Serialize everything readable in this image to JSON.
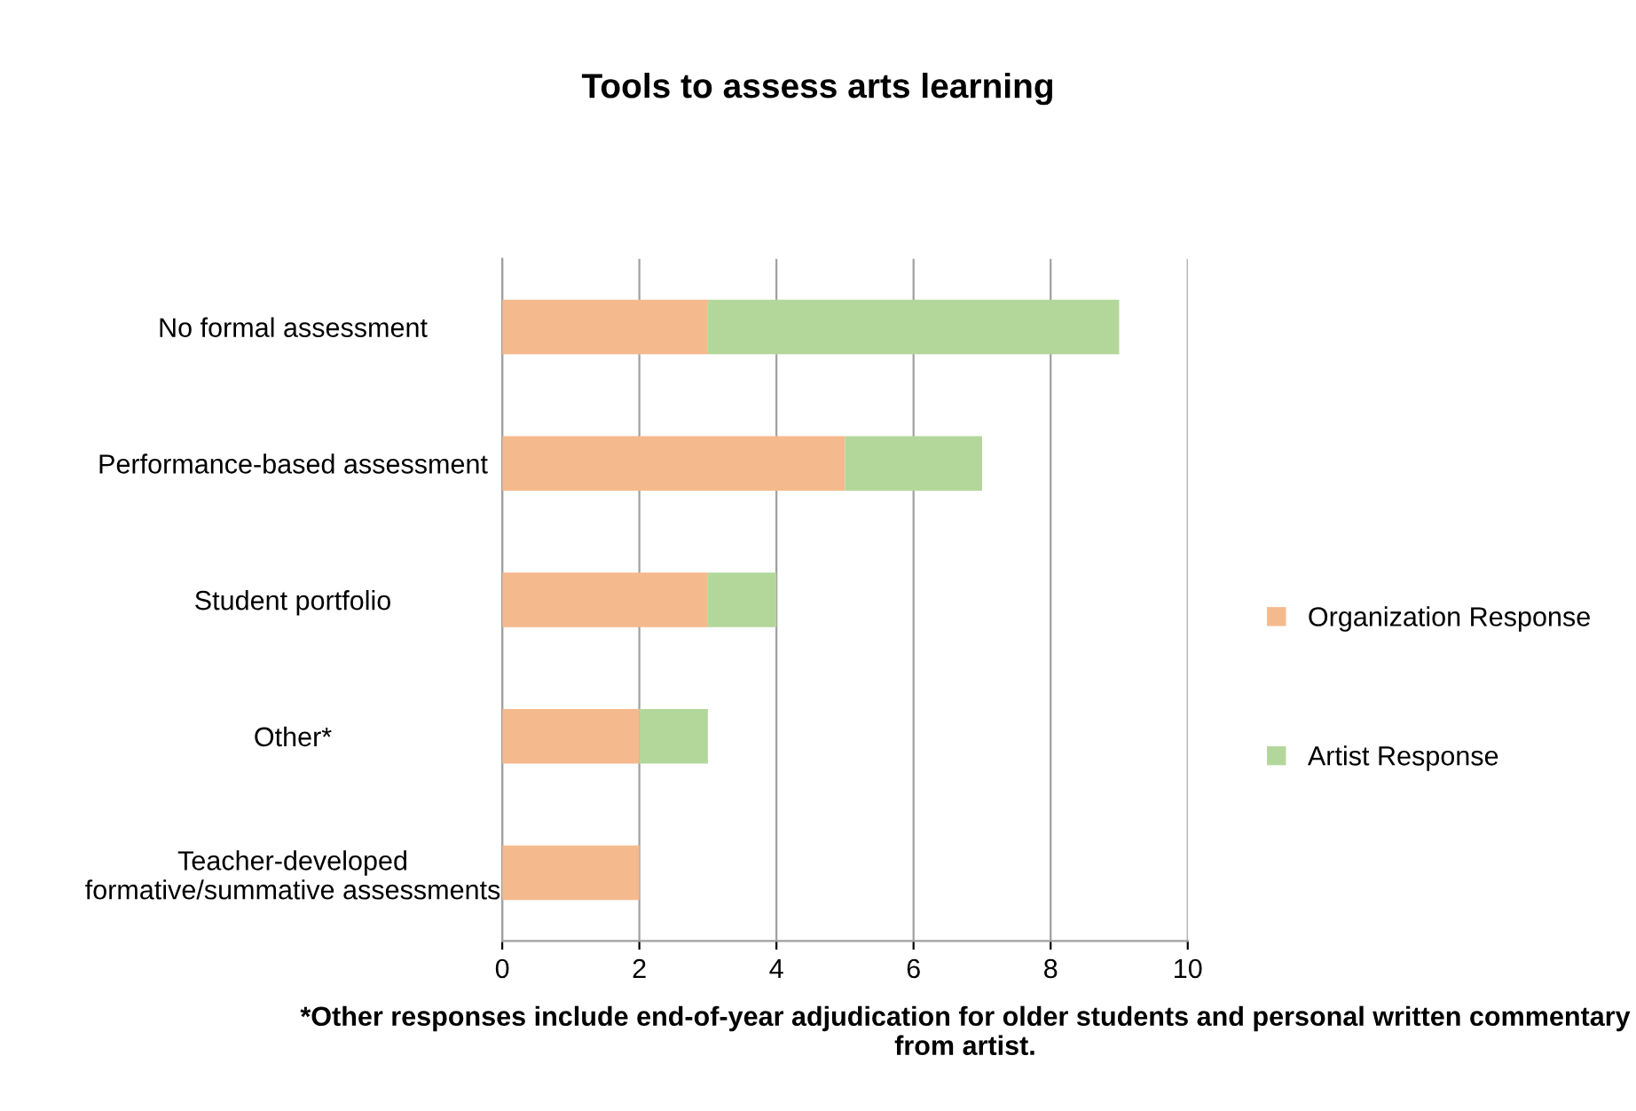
{
  "chart_data": {
    "type": "bar",
    "title": "Tools to assess arts learning",
    "orientation": "horizontal",
    "stacked": true,
    "categories": [
      "No formal assessment",
      "Performance-based assessment",
      "Student portfolio",
      "Other*",
      "Teacher-developed\nformative/summative assessments"
    ],
    "series": [
      {
        "name": "Organization Response",
        "color": "#f5b98e",
        "values": [
          3,
          5,
          3,
          2,
          2
        ]
      },
      {
        "name": "Artist Response",
        "color": "#b3d79b",
        "values": [
          6,
          2,
          1,
          1,
          0
        ]
      }
    ],
    "xlim": [
      0,
      10
    ],
    "xticks": [
      0,
      2,
      4,
      6,
      8,
      10
    ],
    "grid": "x",
    "legend": "right",
    "annotations": [
      "*Other responses include end-of-year adjudication for older students and personal written commentary from artist."
    ]
  }
}
